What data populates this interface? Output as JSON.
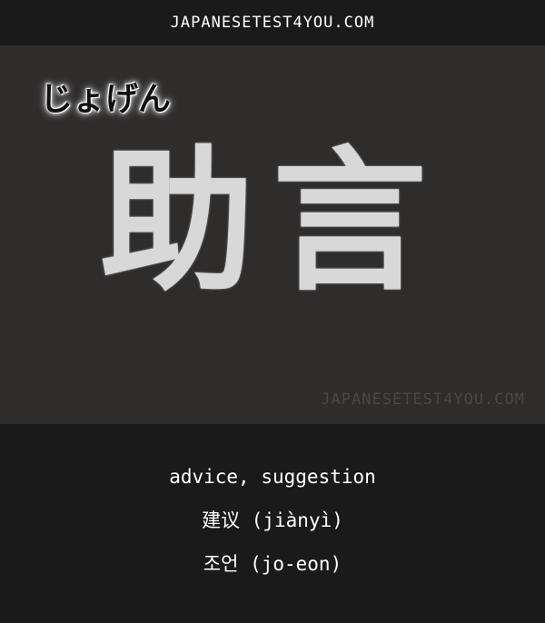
{
  "header": {
    "site": "JAPANESETEST4YOU.COM"
  },
  "card": {
    "reading": "じょげん",
    "kanji": "助言",
    "watermark": "JAPANESETEST4YOU.COM"
  },
  "meanings": {
    "english": "advice, suggestion",
    "chinese": "建议 (jiànyì)",
    "korean": "조언 (jo-eon)"
  },
  "colors": {
    "background": "#1b1a1a",
    "card": "#2f2c2c",
    "text": "#ffffff"
  }
}
